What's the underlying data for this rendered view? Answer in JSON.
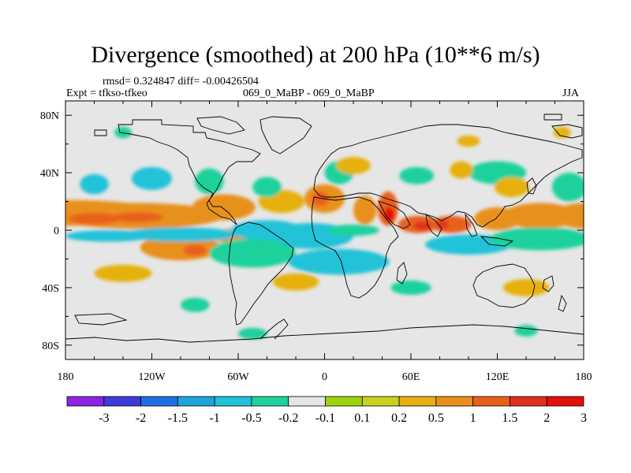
{
  "title": "Divergence (smoothed) at 200 hPa (10**6 m/s)",
  "stats": "rmsd= 0.324847 diff= -0.00426504",
  "expt": "Expt = tfkso-tfkeo",
  "case": "069_0_MaBP - 069_0_MaBP",
  "season": "JJA",
  "chart_data": {
    "type": "heatmap",
    "projection": "cylindrical-equidistant",
    "x_ticks": [
      {
        "value": -180,
        "label": "180"
      },
      {
        "value": -120,
        "label": "120W"
      },
      {
        "value": -60,
        "label": "60W"
      },
      {
        "value": 0,
        "label": "0"
      },
      {
        "value": 60,
        "label": "60E"
      },
      {
        "value": 120,
        "label": "120E"
      },
      {
        "value": 180,
        "label": "180"
      }
    ],
    "y_ticks": [
      {
        "value": 80,
        "label": "80N"
      },
      {
        "value": 40,
        "label": "40N"
      },
      {
        "value": 0,
        "label": "0"
      },
      {
        "value": -40,
        "label": "40S"
      },
      {
        "value": -80,
        "label": "80S"
      }
    ],
    "xlim": [
      -180,
      180
    ],
    "ylim": [
      -90,
      90
    ],
    "colorbar": {
      "labels": [
        "-3",
        "-2",
        "-1.5",
        "-1",
        "-0.5",
        "-0.2",
        "-0.1",
        "0.1",
        "0.2",
        "0.5",
        "1",
        "1.5",
        "2",
        "3"
      ],
      "colors": [
        "#8c23e6",
        "#3c3cdc",
        "#1f6fe0",
        "#1ea4dc",
        "#20c2d8",
        "#1ed19c",
        "#e6e6e6",
        "#9bd40e",
        "#c8d020",
        "#e6b010",
        "#e8901a",
        "#e8601a",
        "#e0301e",
        "#e60d0d"
      ]
    },
    "features": [
      {
        "lon": -180,
        "lat": 12,
        "w": 70,
        "h": 9,
        "value": 0.5
      },
      {
        "lon": -130,
        "lat": 10,
        "w": 60,
        "h": 9,
        "value": 0.6
      },
      {
        "lon": -160,
        "lat": 8,
        "w": 18,
        "h": 4,
        "value": 1.2
      },
      {
        "lon": -130,
        "lat": 9,
        "w": 18,
        "h": 3.5,
        "value": 1.3
      },
      {
        "lon": -70,
        "lat": 16,
        "w": 22,
        "h": 9,
        "value": 0.5
      },
      {
        "lon": -30,
        "lat": 20,
        "w": 16,
        "h": 8,
        "value": 0.4
      },
      {
        "lon": 0,
        "lat": 22,
        "w": 14,
        "h": 10,
        "value": 0.6
      },
      {
        "lon": -3,
        "lat": 22,
        "w": 6,
        "h": 5,
        "value": 1.2
      },
      {
        "lon": 28,
        "lat": 14,
        "w": 8,
        "h": 10,
        "value": 0.6
      },
      {
        "lon": 44,
        "lat": 15,
        "w": 7,
        "h": 12,
        "value": 1.2
      },
      {
        "lon": 45,
        "lat": 11,
        "w": 3.5,
        "h": 5,
        "value": 2.5
      },
      {
        "lon": 65,
        "lat": 4,
        "w": 14,
        "h": 6,
        "value": 1.2
      },
      {
        "lon": 68,
        "lat": 3,
        "w": 6,
        "h": 3,
        "value": 1.6
      },
      {
        "lon": 88,
        "lat": 4,
        "w": 14,
        "h": 6,
        "value": 1.2
      },
      {
        "lon": 82,
        "lat": 4,
        "w": 4,
        "h": 3,
        "value": 1.7
      },
      {
        "lon": 120,
        "lat": 8,
        "w": 16,
        "h": 8,
        "value": 0.5
      },
      {
        "lon": 150,
        "lat": 10,
        "w": 26,
        "h": 9,
        "value": 0.5
      },
      {
        "lon": 180,
        "lat": 10,
        "w": 20,
        "h": 9,
        "value": 0.5
      },
      {
        "lon": -100,
        "lat": -12,
        "w": 28,
        "h": 9,
        "value": 0.5
      },
      {
        "lon": -90,
        "lat": -14,
        "w": 8,
        "h": 4,
        "value": 1.1
      },
      {
        "lon": -65,
        "lat": -4,
        "w": 12,
        "h": 5,
        "value": 0.5
      },
      {
        "lon": -150,
        "lat": -4,
        "w": 30,
        "h": 4,
        "value": -0.6
      },
      {
        "lon": -100,
        "lat": -3,
        "w": 40,
        "h": 5,
        "value": -0.7
      },
      {
        "lon": -40,
        "lat": 0,
        "w": 25,
        "h": 7,
        "value": -0.7
      },
      {
        "lon": -10,
        "lat": -4,
        "w": 30,
        "h": 9,
        "value": -0.6
      },
      {
        "lon": 20,
        "lat": 0,
        "w": 18,
        "h": 4,
        "value": -0.5
      },
      {
        "lon": 100,
        "lat": -10,
        "w": 30,
        "h": 7,
        "value": -0.6
      },
      {
        "lon": 150,
        "lat": -6,
        "w": 35,
        "h": 8,
        "value": -0.5
      },
      {
        "lon": -50,
        "lat": -16,
        "w": 30,
        "h": 10,
        "value": -0.5
      },
      {
        "lon": 10,
        "lat": -22,
        "w": 35,
        "h": 9,
        "value": -0.6
      },
      {
        "lon": -160,
        "lat": 32,
        "w": 10,
        "h": 7,
        "value": -0.6
      },
      {
        "lon": -120,
        "lat": 36,
        "w": 14,
        "h": 8,
        "value": -0.6
      },
      {
        "lon": -80,
        "lat": 34,
        "w": 10,
        "h": 9,
        "value": -0.5
      },
      {
        "lon": -40,
        "lat": 30,
        "w": 10,
        "h": 7,
        "value": -0.5
      },
      {
        "lon": 10,
        "lat": 40,
        "w": 10,
        "h": 8,
        "value": -0.5
      },
      {
        "lon": 64,
        "lat": 38,
        "w": 12,
        "h": 6,
        "value": -0.5
      },
      {
        "lon": 120,
        "lat": 40,
        "w": 20,
        "h": 8,
        "value": -0.5
      },
      {
        "lon": 170,
        "lat": 30,
        "w": 12,
        "h": 10,
        "value": -0.5
      },
      {
        "lon": 130,
        "lat": 30,
        "w": 12,
        "h": 7,
        "value": 0.4
      },
      {
        "lon": 20,
        "lat": 45,
        "w": 12,
        "h": 6,
        "value": 0.4
      },
      {
        "lon": 95,
        "lat": 42,
        "w": 8,
        "h": 6,
        "value": 0.4
      },
      {
        "lon": -140,
        "lat": -30,
        "w": 20,
        "h": 6,
        "value": 0.4
      },
      {
        "lon": -20,
        "lat": -36,
        "w": 16,
        "h": 6,
        "value": 0.4
      },
      {
        "lon": 60,
        "lat": -40,
        "w": 14,
        "h": 5,
        "value": -0.5
      },
      {
        "lon": 140,
        "lat": -40,
        "w": 16,
        "h": 6,
        "value": 0.4
      },
      {
        "lon": -90,
        "lat": -52,
        "w": 10,
        "h": 5,
        "value": -0.4
      },
      {
        "lon": -140,
        "lat": 68,
        "w": 6,
        "h": 4,
        "value": -0.5
      },
      {
        "lon": 165,
        "lat": 68,
        "w": 6,
        "h": 4,
        "value": 0.4
      },
      {
        "lon": 100,
        "lat": 62,
        "w": 8,
        "h": 4,
        "value": 0.4
      },
      {
        "lon": -50,
        "lat": -72,
        "w": 10,
        "h": 4,
        "value": -0.5
      },
      {
        "lon": 140,
        "lat": -70,
        "w": 8,
        "h": 4,
        "value": -0.4
      }
    ]
  }
}
